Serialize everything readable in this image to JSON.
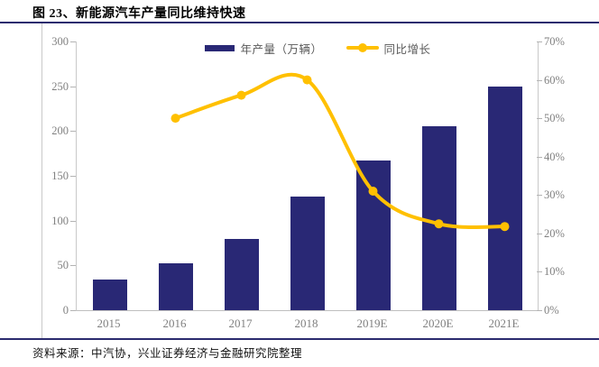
{
  "header": {
    "title": "图 23、新能源汽车产量同比维持快速"
  },
  "footer": {
    "source": "资料来源：中汽协，兴业证券经济与金融研究院整理"
  },
  "legend": {
    "items": [
      {
        "label": "年产量（万辆）",
        "swatch": "bar-swatch-icon"
      },
      {
        "label": "同比增长",
        "swatch": "line-swatch-icon"
      }
    ]
  },
  "colors": {
    "bar": "#292875",
    "line": "#FFC000",
    "rule": "#2B2B6E",
    "axis_text": "#808080"
  },
  "chart_data": {
    "type": "bar",
    "title": "新能源汽车产量同比维持快速",
    "categories": [
      "2015",
      "2016",
      "2017",
      "2018",
      "2019E",
      "2020E",
      "2021E"
    ],
    "series": [
      {
        "name": "年产量（万辆）",
        "type": "bar",
        "axis": "left",
        "values": [
          34,
          52,
          80,
          127,
          167,
          205,
          250
        ]
      },
      {
        "name": "同比增长",
        "type": "line",
        "axis": "right",
        "unit": "%",
        "values": [
          null,
          50,
          56,
          60,
          31,
          22.5,
          21.8
        ]
      }
    ],
    "left_axis": {
      "min": 0,
      "max": 300,
      "step": 50,
      "ticks": [
        "0",
        "50",
        "100",
        "150",
        "200",
        "250",
        "300"
      ]
    },
    "right_axis": {
      "min": 0,
      "max": 70,
      "step": 10,
      "ticks": [
        "0%",
        "10%",
        "20%",
        "30%",
        "40%",
        "50%",
        "60%",
        "70%"
      ]
    },
    "grid": false,
    "legend_position": "top-center",
    "line_smoothing": true
  }
}
